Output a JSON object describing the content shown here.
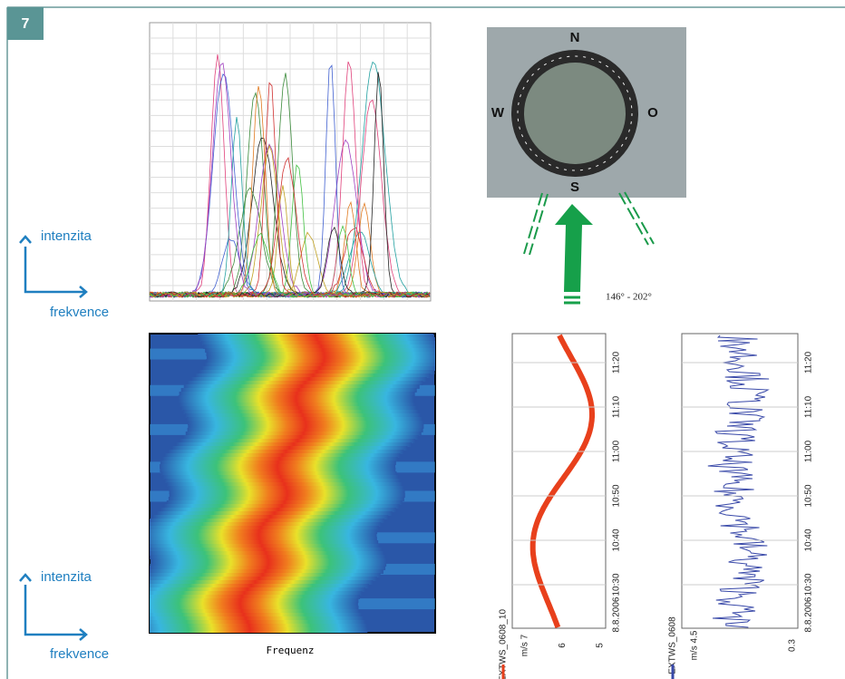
{
  "badge": "7",
  "axis_hints": [
    {
      "y_label": "intenzita",
      "x_label": "frekvence"
    },
    {
      "y_label": "intenzita",
      "x_label": "frekvence"
    }
  ],
  "compass": {
    "north": "N",
    "west": "W",
    "east": "O",
    "south": "S",
    "range": "146° - 202°"
  },
  "spectrogram": {
    "x_label": "Frequenz"
  },
  "wind_charts": {
    "time_ticks": [
      "11:20",
      "11:10",
      "11:00",
      "10:50",
      "10:40",
      "10:30"
    ],
    "date": "8.8.2006",
    "series": [
      {
        "name": "EXTWS_0608_10",
        "unit_ticks": [
          "m/s 7",
          "6",
          "5"
        ]
      },
      {
        "name": "EXTWS_0608",
        "unit_ticks": [
          "m/s 4.5",
          "0.3"
        ]
      }
    ]
  }
}
